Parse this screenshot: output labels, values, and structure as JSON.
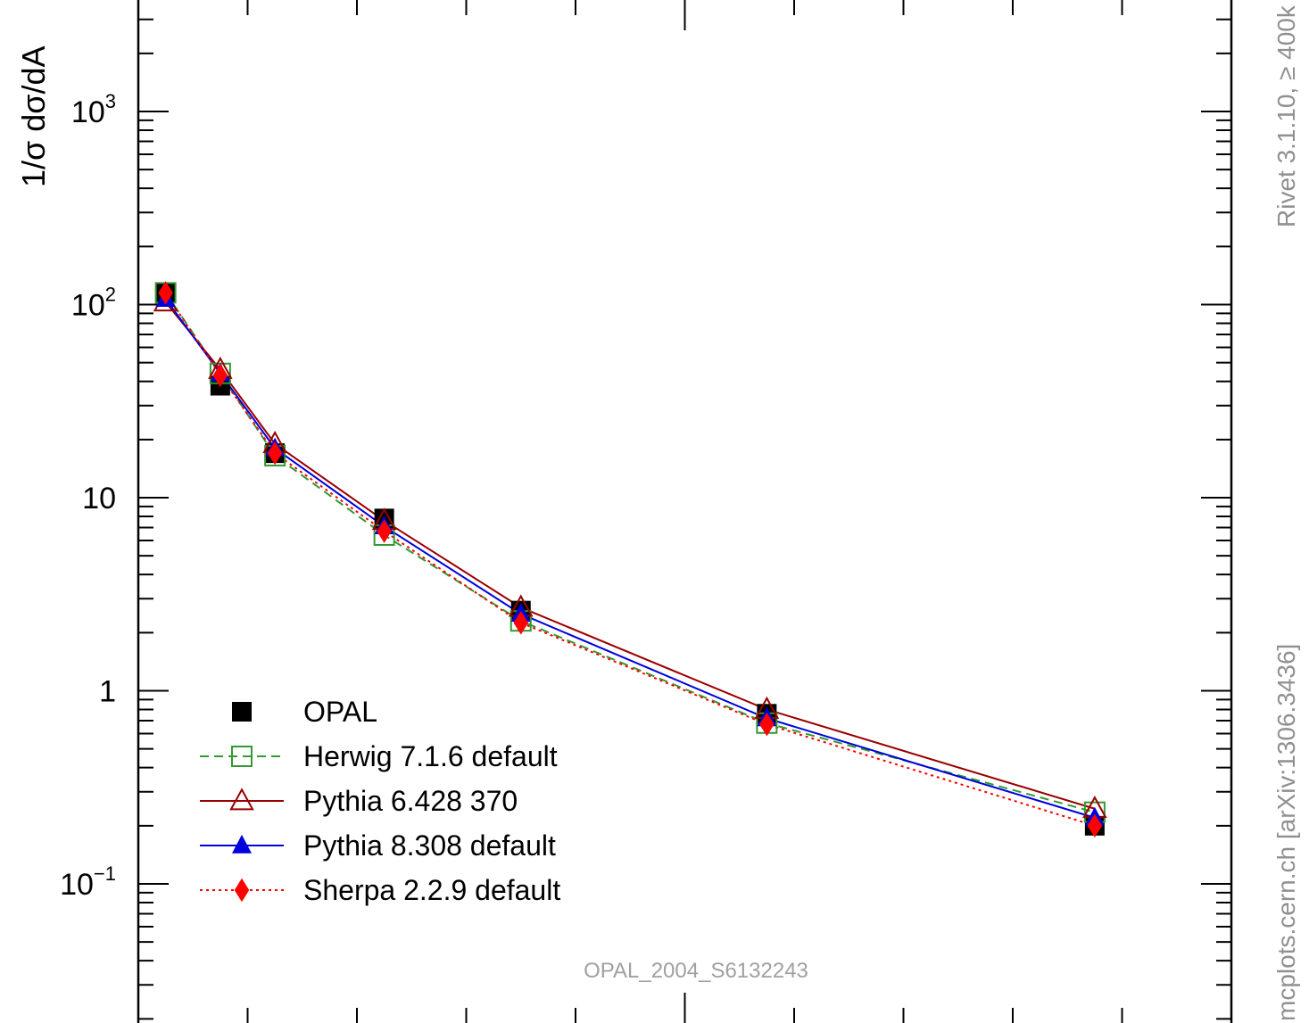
{
  "chart_data": {
    "type": "line",
    "title": "",
    "xlabel": "",
    "ylabel": "1/σ dσ/dA",
    "y_scale": "log",
    "ylim": [
      0.0185,
      3300
    ],
    "xlim": [
      0,
      0.5
    ],
    "y_ticks": [
      {
        "value": 0.1,
        "base": "10",
        "exp": "−1"
      },
      {
        "value": 1,
        "base": "1",
        "exp": ""
      },
      {
        "value": 10,
        "base": "10",
        "exp": ""
      },
      {
        "value": 100,
        "base": "10",
        "exp": "2"
      },
      {
        "value": 1000,
        "base": "10",
        "exp": "3"
      }
    ],
    "x": [
      0.0125,
      0.0375,
      0.0625,
      0.1125,
      0.175,
      0.2875,
      0.4375
    ],
    "series": [
      {
        "name": "OPAL",
        "color": "#000000",
        "line": "none",
        "marker": "filled-square",
        "values": [
          115,
          38,
          17,
          7.8,
          2.6,
          0.76,
          0.2
        ]
      },
      {
        "name": "Herwig 7.1.6 default",
        "color": "#339933",
        "line": "dashed",
        "marker": "open-square",
        "values": [
          115,
          44,
          16.5,
          6.4,
          2.3,
          0.68,
          0.235
        ]
      },
      {
        "name": "Pythia 6.428 370",
        "color": "#990000",
        "line": "solid",
        "marker": "open-triangle",
        "values": [
          103,
          46,
          19,
          7.6,
          2.7,
          0.8,
          0.245
        ]
      },
      {
        "name": "Pythia 8.308 default",
        "color": "#0000dd",
        "line": "solid",
        "marker": "filled-triangle",
        "values": [
          107,
          44,
          18,
          7.1,
          2.5,
          0.72,
          0.22
        ]
      },
      {
        "name": "Sherpa 2.2.9 default",
        "color": "#ff0000",
        "line": "dotted",
        "marker": "filled-diamond",
        "values": [
          115,
          43,
          17,
          6.7,
          2.25,
          0.67,
          0.2
        ]
      }
    ],
    "legend_position": "bottom-left",
    "grid": false
  },
  "side_labels": {
    "rivet": "Rivet 3.1.10, ≥ 400k events",
    "mcplots": "mcplots.cern.ch [arXiv:1306.3436]"
  },
  "watermark": "OPAL_2004_S6132243"
}
